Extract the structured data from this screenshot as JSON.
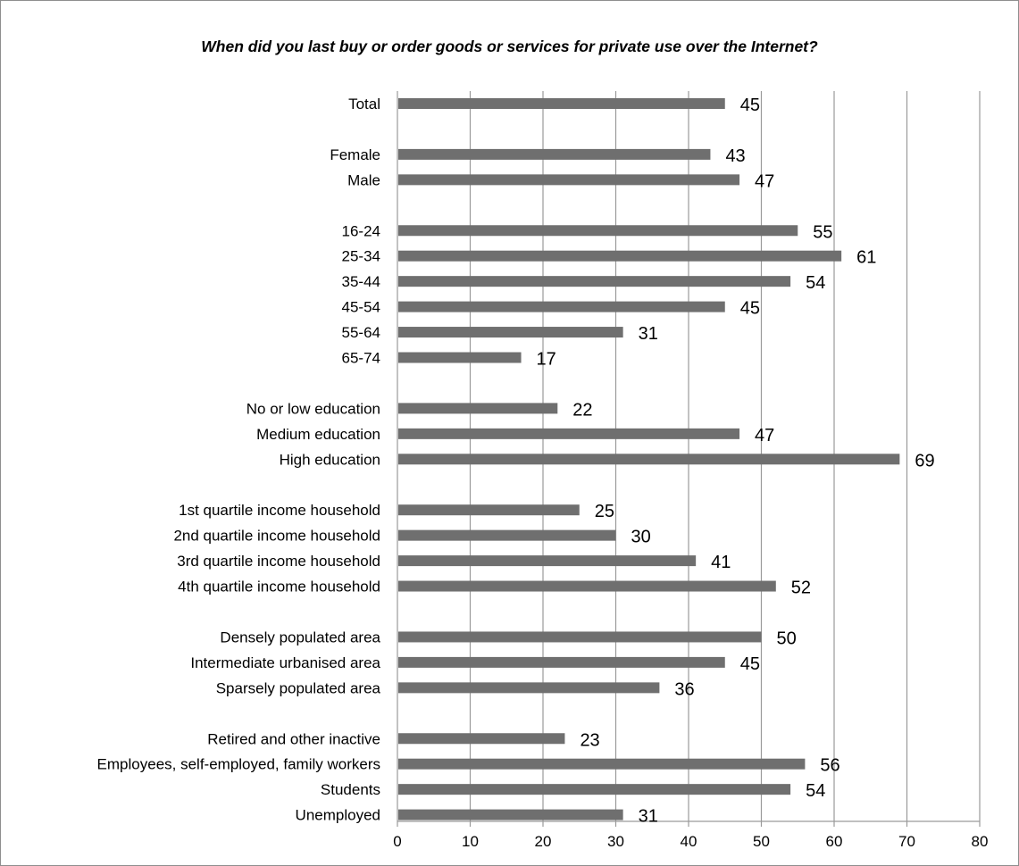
{
  "chart_data": {
    "type": "bar",
    "orientation": "horizontal",
    "title": "When did you last buy or order goods or services for private use over the Internet?",
    "xlabel": "",
    "ylabel": "",
    "xlim": [
      0,
      80
    ],
    "x_ticks": [
      "0",
      "10",
      "20",
      "30",
      "40",
      "50",
      "60",
      "70",
      "80"
    ],
    "grid": "vertical gridlines",
    "legend": "none",
    "bar_color": "#6f6f6f",
    "groups": [
      {
        "categories": [
          "Total"
        ],
        "values": [
          45
        ]
      },
      {
        "categories": [
          "Female",
          "Male"
        ],
        "values": [
          43,
          47
        ]
      },
      {
        "categories": [
          "16-24",
          "25-34",
          "35-44",
          "45-54",
          "55-64",
          "65-74"
        ],
        "values": [
          55,
          61,
          54,
          45,
          31,
          17
        ]
      },
      {
        "categories": [
          "No or low education",
          "Medium education",
          "High education"
        ],
        "values": [
          22,
          47,
          69
        ]
      },
      {
        "categories": [
          "1st quartile income household",
          "2nd quartile income household",
          "3rd quartile income household",
          "4th quartile income household"
        ],
        "values": [
          25,
          30,
          41,
          52
        ]
      },
      {
        "categories": [
          "Densely populated area",
          "Intermediate urbanised area",
          "Sparsely populated area"
        ],
        "values": [
          50,
          45,
          36
        ]
      },
      {
        "categories": [
          "Retired and other inactive",
          "Employees, self-employed, family workers",
          "Students",
          "Unemployed"
        ],
        "values": [
          23,
          56,
          54,
          31
        ]
      }
    ]
  }
}
